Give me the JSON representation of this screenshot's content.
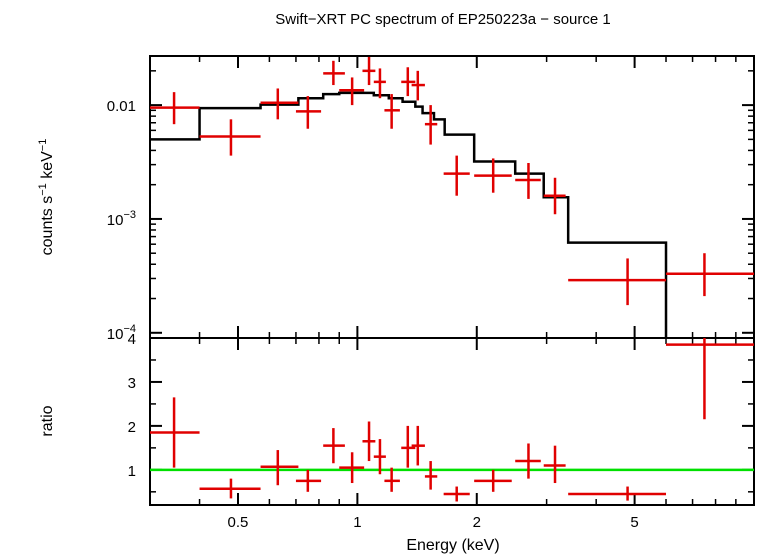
{
  "chart_data": [
    {
      "type": "scatter",
      "title": "Swift−XRT PC spectrum of EP250223a − source 1",
      "ylabel_html": "counts s<tspan baseline-shift='super' font-size='10'>−1</tspan> keV<tspan baseline-shift='super' font-size='10'>−1</tspan>",
      "ylabel_parts": [
        "counts s",
        "−1",
        " keV",
        "−1"
      ],
      "x_scale": "log",
      "y_scale": "log",
      "xlim": [
        0.3,
        10
      ],
      "ylim": [
        9e-05,
        0.027
      ],
      "y_ticks": [
        {
          "value": 0.01,
          "label": "0.01",
          "sup": ""
        },
        {
          "value": 0.001,
          "label": "10",
          "sup": "−3"
        },
        {
          "value": 0.0001,
          "label": "10",
          "sup": "−4"
        }
      ],
      "series": [
        {
          "kind": "data",
          "color": "#e00000",
          "points": [
            {
              "x": 0.345,
              "xlo": 0.3,
              "xhi": 0.4,
              "y": 0.0095,
              "ylo": 0.0068,
              "yhi": 0.013
            },
            {
              "x": 0.48,
              "xlo": 0.4,
              "xhi": 0.57,
              "y": 0.0053,
              "ylo": 0.0036,
              "yhi": 0.0075
            },
            {
              "x": 0.63,
              "xlo": 0.57,
              "xhi": 0.71,
              "y": 0.0105,
              "ylo": 0.0075,
              "yhi": 0.014
            },
            {
              "x": 0.75,
              "xlo": 0.7,
              "xhi": 0.81,
              "y": 0.0088,
              "ylo": 0.0062,
              "yhi": 0.012
            },
            {
              "x": 0.87,
              "xlo": 0.82,
              "xhi": 0.93,
              "y": 0.019,
              "ylo": 0.015,
              "yhi": 0.0245
            },
            {
              "x": 0.97,
              "xlo": 0.9,
              "xhi": 1.04,
              "y": 0.0135,
              "ylo": 0.01,
              "yhi": 0.0175
            },
            {
              "x": 1.07,
              "xlo": 1.03,
              "xhi": 1.11,
              "y": 0.02,
              "ylo": 0.015,
              "yhi": 0.0265
            },
            {
              "x": 1.14,
              "xlo": 1.1,
              "xhi": 1.18,
              "y": 0.016,
              "ylo": 0.0115,
              "yhi": 0.021
            },
            {
              "x": 1.22,
              "xlo": 1.17,
              "xhi": 1.28,
              "y": 0.009,
              "ylo": 0.0062,
              "yhi": 0.0125
            },
            {
              "x": 1.34,
              "xlo": 1.29,
              "xhi": 1.4,
              "y": 0.016,
              "ylo": 0.012,
              "yhi": 0.0215
            },
            {
              "x": 1.42,
              "xlo": 1.37,
              "xhi": 1.48,
              "y": 0.015,
              "ylo": 0.011,
              "yhi": 0.02
            },
            {
              "x": 1.53,
              "xlo": 1.48,
              "xhi": 1.59,
              "y": 0.0068,
              "ylo": 0.0045,
              "yhi": 0.01
            },
            {
              "x": 1.78,
              "xlo": 1.65,
              "xhi": 1.92,
              "y": 0.0025,
              "ylo": 0.0016,
              "yhi": 0.0036
            },
            {
              "x": 2.2,
              "xlo": 1.97,
              "xhi": 2.45,
              "y": 0.0024,
              "ylo": 0.0017,
              "yhi": 0.0034
            },
            {
              "x": 2.7,
              "xlo": 2.5,
              "xhi": 2.9,
              "y": 0.0022,
              "ylo": 0.0015,
              "yhi": 0.0031
            },
            {
              "x": 3.15,
              "xlo": 2.95,
              "xhi": 3.35,
              "y": 0.0016,
              "ylo": 0.0011,
              "yhi": 0.0023
            },
            {
              "x": 4.8,
              "xlo": 3.4,
              "xhi": 6.0,
              "y": 0.00029,
              "ylo": 0.000175,
              "yhi": 0.00045
            },
            {
              "x": 7.5,
              "xlo": 6.0,
              "xhi": 10.0,
              "y": 0.00033,
              "ylo": 0.00021,
              "yhi": 0.0005
            }
          ]
        },
        {
          "kind": "model",
          "color": "#000000",
          "bins": [
            {
              "xlo": 0.3,
              "xhi": 0.4,
              "y": 0.005
            },
            {
              "xlo": 0.4,
              "xhi": 0.57,
              "y": 0.0094
            },
            {
              "xlo": 0.57,
              "xhi": 0.71,
              "y": 0.0101
            },
            {
              "xlo": 0.71,
              "xhi": 0.82,
              "y": 0.0115
            },
            {
              "xlo": 0.82,
              "xhi": 0.9,
              "y": 0.0125
            },
            {
              "xlo": 0.9,
              "xhi": 1.1,
              "y": 0.0128
            },
            {
              "xlo": 1.1,
              "xhi": 1.2,
              "y": 0.0122
            },
            {
              "xlo": 1.2,
              "xhi": 1.3,
              "y": 0.0115
            },
            {
              "xlo": 1.3,
              "xhi": 1.4,
              "y": 0.0107
            },
            {
              "xlo": 1.4,
              "xhi": 1.46,
              "y": 0.0097
            },
            {
              "xlo": 1.46,
              "xhi": 1.56,
              "y": 0.0085
            },
            {
              "xlo": 1.56,
              "xhi": 1.66,
              "y": 0.0075
            },
            {
              "xlo": 1.66,
              "xhi": 1.97,
              "y": 0.0055
            },
            {
              "xlo": 1.97,
              "xhi": 2.5,
              "y": 0.0032
            },
            {
              "xlo": 2.5,
              "xhi": 2.95,
              "y": 0.0025
            },
            {
              "xlo": 2.95,
              "xhi": 3.4,
              "y": 0.00155
            },
            {
              "xlo": 3.4,
              "xhi": 6.0,
              "y": 0.00062
            }
          ]
        }
      ]
    },
    {
      "type": "scatter",
      "xlabel": "Energy (keV)",
      "ylabel": "ratio",
      "x_scale": "log",
      "y_scale": "linear",
      "xlim": [
        0.3,
        10
      ],
      "ylim": [
        0.2,
        4.0
      ],
      "x_ticks": [
        {
          "value": 0.5,
          "label": "0.5"
        },
        {
          "value": 1,
          "label": "1"
        },
        {
          "value": 2,
          "label": "2"
        },
        {
          "value": 5,
          "label": "5"
        }
      ],
      "y_ticks": [
        {
          "value": 1,
          "label": "1"
        },
        {
          "value": 2,
          "label": "2"
        },
        {
          "value": 3,
          "label": "3"
        },
        {
          "value": 4,
          "label": "4"
        }
      ],
      "reference_line": {
        "y": 1,
        "color": "#00e000"
      },
      "series": [
        {
          "kind": "data",
          "color": "#e00000",
          "points": [
            {
              "x": 0.345,
              "xlo": 0.3,
              "xhi": 0.4,
              "y": 1.85,
              "ylo": 1.05,
              "yhi": 2.65
            },
            {
              "x": 0.48,
              "xlo": 0.4,
              "xhi": 0.57,
              "y": 0.57,
              "ylo": 0.35,
              "yhi": 0.8
            },
            {
              "x": 0.63,
              "xlo": 0.57,
              "xhi": 0.71,
              "y": 1.07,
              "ylo": 0.65,
              "yhi": 1.45
            },
            {
              "x": 0.75,
              "xlo": 0.7,
              "xhi": 0.81,
              "y": 0.75,
              "ylo": 0.5,
              "yhi": 1.0
            },
            {
              "x": 0.87,
              "xlo": 0.82,
              "xhi": 0.93,
              "y": 1.55,
              "ylo": 1.15,
              "yhi": 1.95
            },
            {
              "x": 0.97,
              "xlo": 0.9,
              "xhi": 1.04,
              "y": 1.05,
              "ylo": 0.7,
              "yhi": 1.4
            },
            {
              "x": 1.07,
              "xlo": 1.03,
              "xhi": 1.11,
              "y": 1.65,
              "ylo": 1.2,
              "yhi": 2.1
            },
            {
              "x": 1.14,
              "xlo": 1.1,
              "xhi": 1.18,
              "y": 1.3,
              "ylo": 0.9,
              "yhi": 1.7
            },
            {
              "x": 1.22,
              "xlo": 1.17,
              "xhi": 1.28,
              "y": 0.75,
              "ylo": 0.5,
              "yhi": 1.05
            },
            {
              "x": 1.34,
              "xlo": 1.29,
              "xhi": 1.4,
              "y": 1.5,
              "ylo": 1.05,
              "yhi": 2.0
            },
            {
              "x": 1.42,
              "xlo": 1.37,
              "xhi": 1.48,
              "y": 1.55,
              "ylo": 1.1,
              "yhi": 2.0
            },
            {
              "x": 1.53,
              "xlo": 1.48,
              "xhi": 1.59,
              "y": 0.85,
              "ylo": 0.55,
              "yhi": 1.2
            },
            {
              "x": 1.78,
              "xlo": 1.65,
              "xhi": 1.92,
              "y": 0.45,
              "ylo": 0.28,
              "yhi": 0.62
            },
            {
              "x": 2.2,
              "xlo": 1.97,
              "xhi": 2.45,
              "y": 0.75,
              "ylo": 0.5,
              "yhi": 1.0
            },
            {
              "x": 2.7,
              "xlo": 2.5,
              "xhi": 2.9,
              "y": 1.2,
              "ylo": 0.8,
              "yhi": 1.6
            },
            {
              "x": 3.15,
              "xlo": 2.95,
              "xhi": 3.35,
              "y": 1.1,
              "ylo": 0.7,
              "yhi": 1.55
            },
            {
              "x": 4.8,
              "xlo": 3.4,
              "xhi": 6.0,
              "y": 0.45,
              "ylo": 0.3,
              "yhi": 0.62
            },
            {
              "x": 7.5,
              "xlo": 6.0,
              "xhi": 10.0,
              "y": 3.85,
              "ylo": 2.15,
              "yhi": 4.0
            }
          ]
        }
      ]
    }
  ]
}
